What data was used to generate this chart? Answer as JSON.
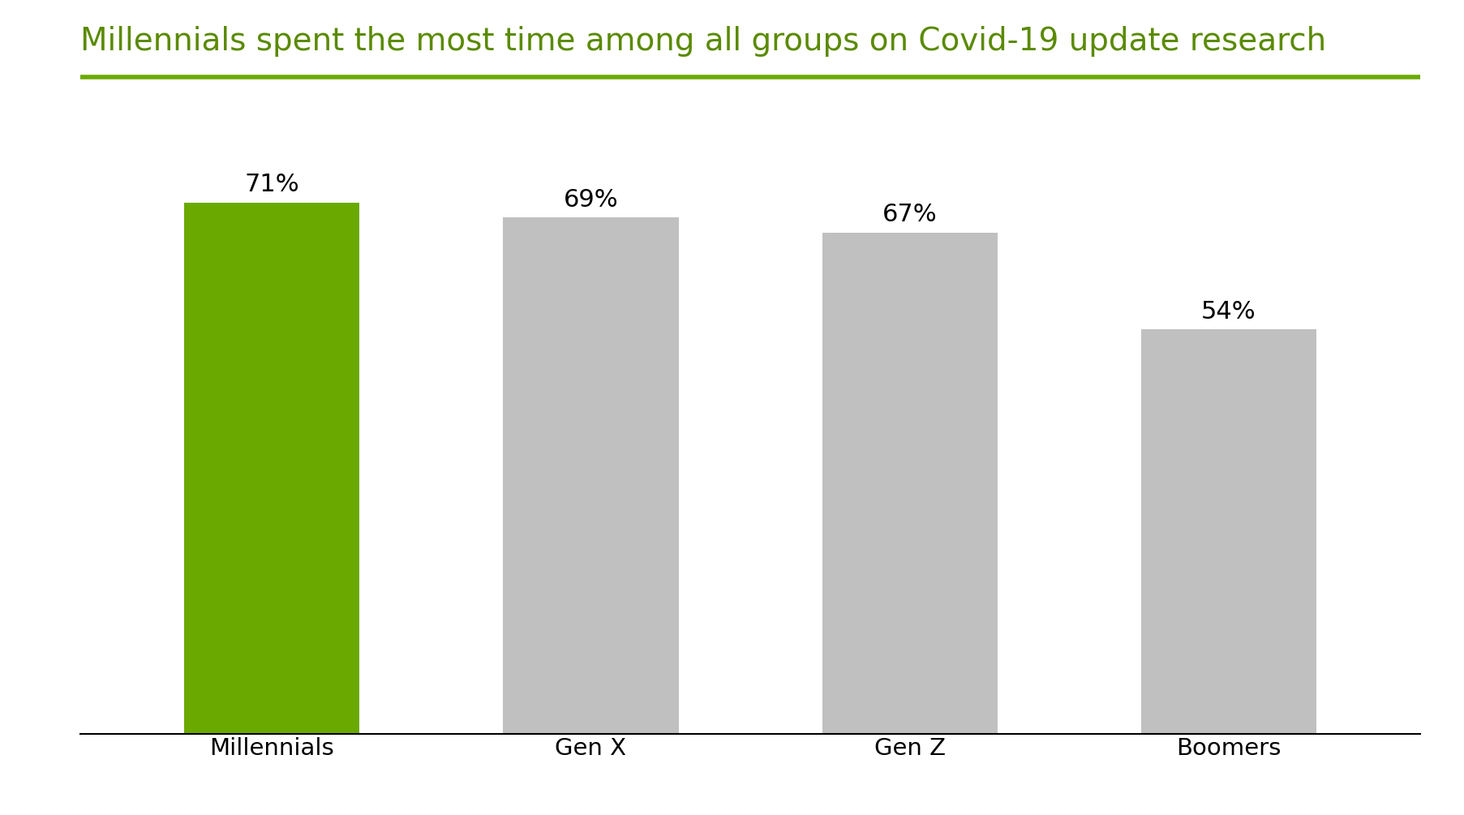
{
  "title": "Millennials spent the most time among all groups on Covid-19 update research",
  "title_color": "#5a8a00",
  "title_fontsize": 28,
  "categories": [
    "Millennials",
    "Gen X",
    "Gen Z",
    "Boomers"
  ],
  "values": [
    71,
    69,
    67,
    54
  ],
  "bar_colors": [
    "#6aaa00",
    "#c0c0c0",
    "#c0c0c0",
    "#c0c0c0"
  ],
  "label_color_millennials": "#000000",
  "label_color_others": "#000000",
  "xtick_color_millennials": "#000000",
  "xtick_color_others": "#000000",
  "background_color": "#ffffff",
  "ylim": [
    0,
    85
  ],
  "bar_width": 0.55,
  "label_fontsize": 22,
  "xlabel_fontsize": 21,
  "title_underline_color": "#6aaa00",
  "title_underline_lw": 4
}
